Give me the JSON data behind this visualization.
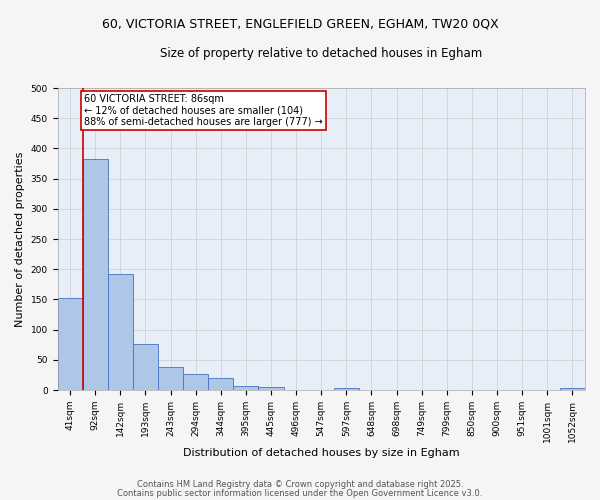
{
  "title_line1": "60, VICTORIA STREET, ENGLEFIELD GREEN, EGHAM, TW20 0QX",
  "title_line2": "Size of property relative to detached houses in Egham",
  "xlabel": "Distribution of detached houses by size in Egham",
  "ylabel": "Number of detached properties",
  "categories": [
    "41sqm",
    "92sqm",
    "142sqm",
    "193sqm",
    "243sqm",
    "294sqm",
    "344sqm",
    "395sqm",
    "445sqm",
    "496sqm",
    "547sqm",
    "597sqm",
    "648sqm",
    "698sqm",
    "749sqm",
    "799sqm",
    "850sqm",
    "900sqm",
    "951sqm",
    "1001sqm",
    "1052sqm"
  ],
  "values": [
    152,
    382,
    192,
    77,
    39,
    26,
    20,
    7,
    5,
    0,
    0,
    4,
    0,
    0,
    0,
    0,
    0,
    0,
    0,
    0,
    4
  ],
  "bar_color": "#aec6e8",
  "bar_edge_color": "#4472c4",
  "bar_edge_width": 0.6,
  "grid_color": "#cccccc",
  "background_color": "#e8eef8",
  "annotation_text": "60 VICTORIA STREET: 86sqm\n← 12% of detached houses are smaller (104)\n88% of semi-detached houses are larger (777) →",
  "annotation_box_color": "#ffffff",
  "annotation_box_edge": "#cc0000",
  "red_line_x": 0.5,
  "red_line_color": "#cc0000",
  "ylim": [
    0,
    500
  ],
  "yticks": [
    0,
    50,
    100,
    150,
    200,
    250,
    300,
    350,
    400,
    450,
    500
  ],
  "footer_line1": "Contains HM Land Registry data © Crown copyright and database right 2025.",
  "footer_line2": "Contains public sector information licensed under the Open Government Licence v3.0.",
  "title_fontsize": 9,
  "subtitle_fontsize": 8.5,
  "axis_label_fontsize": 8,
  "tick_fontsize": 6.5,
  "annotation_fontsize": 7,
  "footer_fontsize": 6
}
